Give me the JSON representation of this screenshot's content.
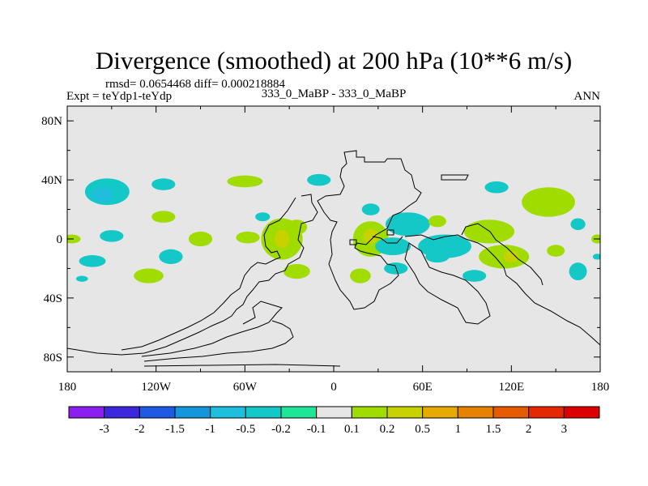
{
  "chart_data": {
    "type": "heatmap",
    "title": "Divergence (smoothed) at 200 hPa (10**6 m/s)",
    "stats": "rmsd= 0.0654468 diff= 0.000218884",
    "left_label": "Expt = teYdp1-teYdp",
    "center_label": "333_0_MaBP - 333_0_MaBP",
    "right_label": "ANN",
    "xlim": [
      -180,
      180
    ],
    "ylim": [
      -90,
      90
    ],
    "x_ticks": [
      {
        "value": -180,
        "label": "180"
      },
      {
        "value": -120,
        "label": "120W"
      },
      {
        "value": -60,
        "label": "60W"
      },
      {
        "value": 0,
        "label": "0"
      },
      {
        "value": 60,
        "label": "60E"
      },
      {
        "value": 120,
        "label": "120E"
      },
      {
        "value": 180,
        "label": "180"
      }
    ],
    "y_ticks": [
      {
        "value": 80,
        "label": "80N"
      },
      {
        "value": 40,
        "label": "40N"
      },
      {
        "value": 0,
        "label": "0"
      },
      {
        "value": -40,
        "label": "40S"
      },
      {
        "value": -80,
        "label": "80S"
      }
    ],
    "levels": [
      "-3",
      "-2",
      "-1.5",
      "-1",
      "-0.5",
      "-0.2",
      "-0.1",
      "0.1",
      "0.2",
      "0.5",
      "1",
      "1.5",
      "2",
      "3"
    ],
    "colors": [
      "#8c1ef0",
      "#3c28dc",
      "#1e5ae6",
      "#1496dc",
      "#1ebedc",
      "#14c8c8",
      "#1ee696",
      "#e6e6e6",
      "#a0dc00",
      "#c8d200",
      "#e6aa00",
      "#e68200",
      "#e65a00",
      "#e62800",
      "#dc0000"
    ],
    "anomalies": [
      {
        "lon": -153,
        "lat": 32,
        "rx": 15,
        "ry": 9,
        "level": -0.2
      },
      {
        "lon": -156,
        "lat": 30,
        "rx": 7,
        "ry": 5,
        "level": -0.5
      },
      {
        "lon": -115,
        "lat": 37,
        "rx": 8,
        "ry": 4,
        "level": -0.2
      },
      {
        "lon": -60,
        "lat": 39,
        "rx": 12,
        "ry": 4,
        "level": 0.2
      },
      {
        "lon": -10,
        "lat": 40,
        "rx": 8,
        "ry": 4,
        "level": -0.2
      },
      {
        "lon": -150,
        "lat": 2,
        "rx": 8,
        "ry": 4,
        "level": -0.2
      },
      {
        "lon": -177,
        "lat": 0,
        "rx": 6,
        "ry": 3,
        "level": 0.2
      },
      {
        "lon": -115,
        "lat": 15,
        "rx": 8,
        "ry": 4,
        "level": 0.2
      },
      {
        "lon": -90,
        "lat": 0,
        "rx": 8,
        "ry": 5,
        "level": 0.2
      },
      {
        "lon": -58,
        "lat": 1,
        "rx": 8,
        "ry": 4,
        "level": 0.2
      },
      {
        "lon": -48,
        "lat": 15,
        "rx": 5,
        "ry": 3,
        "level": -0.2
      },
      {
        "lon": -35,
        "lat": 0,
        "rx": 14,
        "ry": 14,
        "level": 0.2
      },
      {
        "lon": -35,
        "lat": 0,
        "rx": 5,
        "ry": 6,
        "level": 0.5
      },
      {
        "lon": -25,
        "lat": 8,
        "rx": 7,
        "ry": 5,
        "level": 0.2
      },
      {
        "lon": -163,
        "lat": -15,
        "rx": 9,
        "ry": 4,
        "level": -0.2
      },
      {
        "lon": -110,
        "lat": -12,
        "rx": 8,
        "ry": 5,
        "level": -0.2
      },
      {
        "lon": -125,
        "lat": -25,
        "rx": 10,
        "ry": 5,
        "level": 0.2
      },
      {
        "lon": -170,
        "lat": -27,
        "rx": 4,
        "ry": 2,
        "level": -0.2
      },
      {
        "lon": -25,
        "lat": -22,
        "rx": 9,
        "ry": 5,
        "level": 0.2
      },
      {
        "lon": 25,
        "lat": 0,
        "rx": 12,
        "ry": 12,
        "level": 0.2
      },
      {
        "lon": 25,
        "lat": 2,
        "rx": 5,
        "ry": 5,
        "level": 0.5
      },
      {
        "lon": 50,
        "lat": 10,
        "rx": 15,
        "ry": 8,
        "level": -0.2
      },
      {
        "lon": 40,
        "lat": -5,
        "rx": 12,
        "ry": 6,
        "level": -0.2
      },
      {
        "lon": 18,
        "lat": -25,
        "rx": 7,
        "ry": 5,
        "level": 0.2
      },
      {
        "lon": 42,
        "lat": -20,
        "rx": 8,
        "ry": 4,
        "level": -0.2
      },
      {
        "lon": 70,
        "lat": 12,
        "rx": 6,
        "ry": 4,
        "level": 0.2
      },
      {
        "lon": 25,
        "lat": 20,
        "rx": 6,
        "ry": 4,
        "level": -0.2
      },
      {
        "lon": 75,
        "lat": -5,
        "rx": 18,
        "ry": 8,
        "level": -0.2
      },
      {
        "lon": 70,
        "lat": -12,
        "rx": 8,
        "ry": 4,
        "level": -0.2
      },
      {
        "lon": 105,
        "lat": 5,
        "rx": 17,
        "ry": 8,
        "level": 0.2
      },
      {
        "lon": 115,
        "lat": -12,
        "rx": 17,
        "ry": 8,
        "level": 0.2
      },
      {
        "lon": 120,
        "lat": -12,
        "rx": 5,
        "ry": 4,
        "level": 0.5
      },
      {
        "lon": 95,
        "lat": -25,
        "rx": 8,
        "ry": 4,
        "level": -0.2
      },
      {
        "lon": 145,
        "lat": 25,
        "rx": 18,
        "ry": 10,
        "level": 0.2
      },
      {
        "lon": 150,
        "lat": -8,
        "rx": 6,
        "ry": 4,
        "level": 0.2
      },
      {
        "lon": 165,
        "lat": -22,
        "rx": 6,
        "ry": 6,
        "level": -0.2
      },
      {
        "lon": 178,
        "lat": 0,
        "rx": 4,
        "ry": 3,
        "level": 0.2
      },
      {
        "lon": 178,
        "lat": -12,
        "rx": 3,
        "ry": 2,
        "level": -0.2
      },
      {
        "lon": 165,
        "lat": 10,
        "rx": 5,
        "ry": 4,
        "level": -0.2
      },
      {
        "lon": 110,
        "lat": 35,
        "rx": 8,
        "ry": 4,
        "level": -0.2
      }
    ]
  }
}
